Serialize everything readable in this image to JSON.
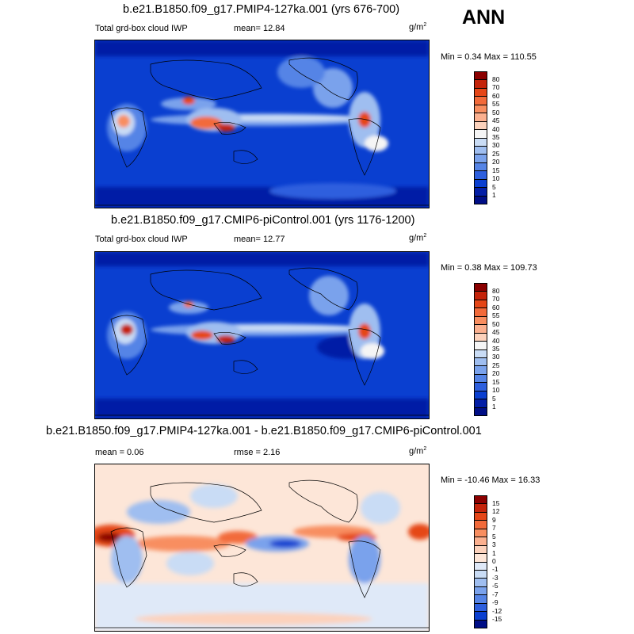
{
  "season": "ANN",
  "panels": [
    {
      "title": "b.e21.B1850.f09_g17.PMIP4-127ka.001 (yrs 676-700)",
      "left_label": "Total grd-box cloud IWP",
      "center_label": "mean=  12.84",
      "units": "g/m",
      "units_exp": "2",
      "minmax": "Min =  0.34 Max = 110.55",
      "colorbar": {
        "labels": [
          "80",
          "70",
          "60",
          "55",
          "50",
          "45",
          "40",
          "35",
          "30",
          "25",
          "20",
          "15",
          "10",
          "5",
          "1"
        ],
        "colors": [
          "#8b0000",
          "#c4230a",
          "#e54617",
          "#f26a3a",
          "#f88e60",
          "#fbb08f",
          "#fcd2bc",
          "#f5f5f5",
          "#c9dcf5",
          "#9fbef0",
          "#7aa2ec",
          "#5584e6",
          "#2d5fde",
          "#0a3fd0",
          "#031ea6",
          "#000e86"
        ]
      }
    },
    {
      "title": "b.e21.B1850.f09_g17.CMIP6-piControl.001 (yrs 1176-1200)",
      "left_label": "Total grd-box cloud IWP",
      "center_label": "mean=  12.77",
      "units": "g/m",
      "units_exp": "2",
      "minmax": "Min =  0.38 Max = 109.73",
      "colorbar": {
        "labels": [
          "80",
          "70",
          "60",
          "55",
          "50",
          "45",
          "40",
          "35",
          "30",
          "25",
          "20",
          "15",
          "10",
          "5",
          "1"
        ],
        "colors": [
          "#8b0000",
          "#c4230a",
          "#e54617",
          "#f26a3a",
          "#f88e60",
          "#fbb08f",
          "#fcd2bc",
          "#f5f5f5",
          "#c9dcf5",
          "#9fbef0",
          "#7aa2ec",
          "#5584e6",
          "#2d5fde",
          "#0a3fd0",
          "#031ea6",
          "#000e86"
        ]
      }
    },
    {
      "title": "b.e21.B1850.f09_g17.PMIP4-127ka.001 - b.e21.B1850.f09_g17.CMIP6-piControl.001",
      "left_label": "mean =   0.06",
      "center_label": "rmse =   2.16",
      "units": "g/m",
      "units_exp": "2",
      "minmax": "Min = -10.46 Max =  16.33",
      "colorbar": {
        "labels": [
          "15",
          "12",
          "9",
          "7",
          "5",
          "3",
          "1",
          "0",
          "-1",
          "-3",
          "-5",
          "-7",
          "-9",
          "-12",
          "-15"
        ],
        "colors": [
          "#8b0000",
          "#c4230a",
          "#e54617",
          "#f26a3a",
          "#f88e60",
          "#fbb08f",
          "#fcd2bc",
          "#fde6d8",
          "#dfe9f8",
          "#c9dcf5",
          "#9fbef0",
          "#7aa2ec",
          "#5584e6",
          "#2d5fde",
          "#0a3fd0",
          "#000e86"
        ]
      }
    }
  ]
}
